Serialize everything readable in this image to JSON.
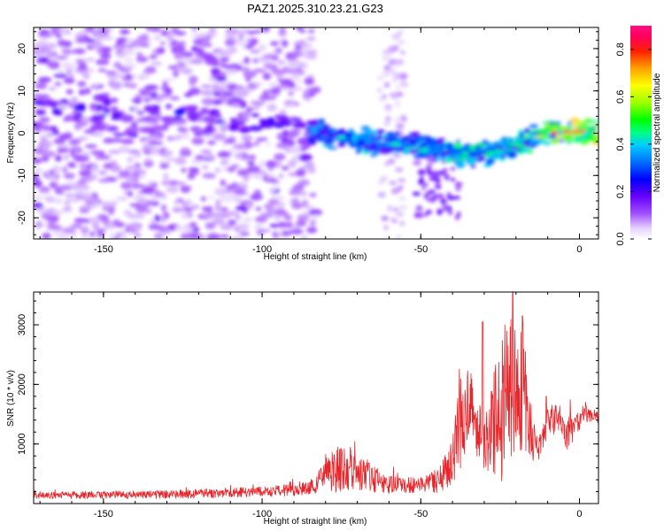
{
  "title": "PAZ1.2025.310.23.21.G23",
  "chart_data": [
    {
      "type": "heatmap",
      "xlabel": "Height of straight line (km)",
      "ylabel": "Frequency (Hz)",
      "xlim": [
        -172,
        6
      ],
      "ylim": [
        -25,
        25
      ],
      "xticks": [
        -150,
        -100,
        -50,
        0
      ],
      "xtick_labels": [
        "-150",
        "-100",
        "-50",
        "0"
      ],
      "yticks": [
        -20,
        -10,
        0,
        10,
        20
      ],
      "ytick_labels": [
        "-20",
        "-10",
        "0",
        "10",
        "20"
      ],
      "colorbar": {
        "label": "Normalized spectral amplitude",
        "range": [
          0,
          0.9
        ],
        "ticks": [
          0.0,
          0.2,
          0.4,
          0.6,
          0.8
        ],
        "tick_labels": [
          "0.0",
          "0.2",
          "0.4",
          "0.6",
          "0.8"
        ],
        "colormap": "rainbow"
      },
      "ridge": {
        "name": "dominant frequency track",
        "x": [
          -150,
          -130,
          -110,
          -100,
          -90,
          -80,
          -70,
          -60,
          -50,
          -40,
          -30,
          -20,
          -10,
          0,
          5
        ],
        "y": [
          5,
          5,
          4,
          3,
          2,
          0,
          -2,
          -2.5,
          -3,
          -4.5,
          -5,
          -3,
          0,
          0.5,
          0
        ]
      }
    },
    {
      "type": "line",
      "xlabel": "Height of straight line (km)",
      "ylabel": "SNR (10 * v/v)",
      "xlim": [
        -172,
        6
      ],
      "ylim": [
        0,
        3550
      ],
      "xticks": [
        -150,
        -100,
        -50,
        0
      ],
      "xtick_labels": [
        "-150",
        "-100",
        "-50",
        "0"
      ],
      "yticks": [
        1000,
        2000,
        3000
      ],
      "ytick_labels": [
        "1000",
        "2000",
        "3000"
      ],
      "series_color": "#e8252a",
      "envelope": {
        "x": [
          -172,
          -130,
          -100,
          -90,
          -84,
          -80,
          -75,
          -70,
          -65,
          -60,
          -55,
          -50,
          -45,
          -40,
          -38,
          -35,
          -32,
          -30,
          -28,
          -25,
          -22,
          -20,
          -18,
          -16,
          -14,
          -12,
          -10,
          -8,
          -6,
          -4,
          -2,
          0,
          2,
          4,
          6
        ],
        "base": [
          140,
          150,
          200,
          230,
          280,
          480,
          600,
          560,
          420,
          330,
          300,
          330,
          380,
          650,
          1400,
          1700,
          1300,
          900,
          1250,
          1700,
          2100,
          1600,
          2100,
          1400,
          1000,
          950,
          1400,
          1400,
          1450,
          1300,
          1200,
          1400,
          1500,
          1500,
          1450
        ],
        "amp": [
          60,
          70,
          90,
          100,
          120,
          280,
          420,
          330,
          230,
          170,
          130,
          140,
          200,
          450,
          900,
          700,
          550,
          400,
          700,
          1400,
          1350,
          800,
          1300,
          700,
          300,
          250,
          200,
          250,
          200,
          450,
          250,
          200,
          150,
          120,
          100
        ]
      },
      "peaks": [
        {
          "x": -30.5,
          "y": 3050
        },
        {
          "x": -21,
          "y": 3550
        },
        {
          "x": -18,
          "y": 3150
        },
        {
          "x": -10.5,
          "y": 1800
        }
      ]
    }
  ]
}
